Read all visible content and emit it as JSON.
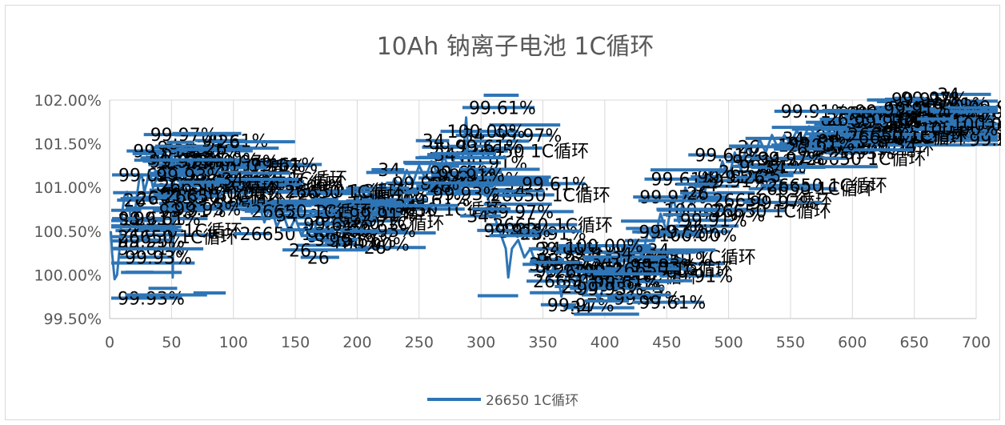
{
  "chart_data": {
    "type": "line",
    "title": "10Ah 钠离子电池 1C循环",
    "xlabel": "",
    "ylabel": "",
    "xlim": [
      0,
      700
    ],
    "ylim": [
      99.5,
      102.0
    ],
    "x_ticks": [
      0,
      50,
      100,
      150,
      200,
      250,
      300,
      350,
      400,
      450,
      500,
      550,
      600,
      650,
      700
    ],
    "x_tick_labels": [
      "0",
      "50",
      "100",
      "150",
      "200",
      "250",
      "300",
      "350",
      "400",
      "450",
      "500",
      "550",
      "600",
      "650",
      "700"
    ],
    "y_ticks": [
      99.5,
      100.0,
      100.5,
      101.0,
      101.5,
      102.0
    ],
    "y_tick_labels": [
      "99.50%",
      "100.00%",
      "100.50%",
      "101.00%",
      "101.50%",
      "102.00%"
    ],
    "grid": "vertical",
    "legend_position": "bottom",
    "series_color": "#2e75b6",
    "series": [
      {
        "name": "26650 1C循环",
        "points": [
          [
            1,
            100.5
          ],
          [
            2,
            100.25
          ],
          [
            4,
            99.95
          ],
          [
            6,
            100.0
          ],
          [
            8,
            100.3
          ],
          [
            10,
            100.7
          ],
          [
            12,
            100.9
          ],
          [
            14,
            100.95
          ],
          [
            16,
            100.75
          ],
          [
            18,
            100.55
          ],
          [
            20,
            100.65
          ],
          [
            22,
            100.9
          ],
          [
            24,
            101.1
          ],
          [
            26,
            101.15
          ],
          [
            28,
            100.95
          ],
          [
            30,
            101.05
          ],
          [
            32,
            101.2
          ],
          [
            35,
            101.0
          ],
          [
            38,
            101.1
          ],
          [
            42,
            101.2
          ],
          [
            45,
            101.35
          ],
          [
            48,
            101.2
          ],
          [
            50,
            101.5
          ],
          [
            51,
            99.97
          ],
          [
            52,
            101.3
          ],
          [
            55,
            101.5
          ],
          [
            60,
            101.4
          ],
          [
            65,
            101.2
          ],
          [
            70,
            101.3
          ],
          [
            75,
            101.1
          ],
          [
            80,
            101.3
          ],
          [
            85,
            101.15
          ],
          [
            90,
            101.25
          ],
          [
            95,
            100.95
          ],
          [
            100,
            101.1
          ],
          [
            105,
            100.85
          ],
          [
            110,
            100.95
          ],
          [
            115,
            100.7
          ],
          [
            120,
            100.85
          ],
          [
            125,
            100.6
          ],
          [
            130,
            100.8
          ],
          [
            135,
            100.55
          ],
          [
            140,
            100.7
          ],
          [
            145,
            100.5
          ],
          [
            150,
            100.65
          ],
          [
            155,
            100.45
          ],
          [
            160,
            100.6
          ],
          [
            165,
            100.5
          ],
          [
            170,
            100.7
          ],
          [
            175,
            100.55
          ],
          [
            180,
            100.75
          ],
          [
            185,
            100.6
          ],
          [
            190,
            100.8
          ],
          [
            195,
            100.7
          ],
          [
            200,
            100.9
          ],
          [
            205,
            100.75
          ],
          [
            210,
            100.95
          ],
          [
            215,
            100.85
          ],
          [
            220,
            101.05
          ],
          [
            225,
            100.9
          ],
          [
            230,
            101.1
          ],
          [
            235,
            101.0
          ],
          [
            240,
            101.2
          ],
          [
            245,
            101.05
          ],
          [
            250,
            101.25
          ],
          [
            255,
            101.1
          ],
          [
            260,
            101.3
          ],
          [
            265,
            101.15
          ],
          [
            270,
            101.35
          ],
          [
            275,
            101.2
          ],
          [
            280,
            101.4
          ],
          [
            285,
            101.3
          ],
          [
            288,
            101.8
          ],
          [
            290,
            101.3
          ],
          [
            295,
            101.1
          ],
          [
            300,
            101.0
          ],
          [
            305,
            100.9
          ],
          [
            310,
            100.7
          ],
          [
            315,
            100.5
          ],
          [
            320,
            100.3
          ],
          [
            322,
            99.97
          ],
          [
            325,
            100.3
          ],
          [
            330,
            100.4
          ],
          [
            335,
            100.2
          ],
          [
            340,
            100.3
          ],
          [
            345,
            100.1
          ],
          [
            350,
            100.25
          ],
          [
            355,
            99.95
          ],
          [
            360,
            100.15
          ],
          [
            365,
            99.75
          ],
          [
            370,
            100.05
          ],
          [
            375,
            99.9
          ],
          [
            380,
            100.0
          ],
          [
            385,
            99.8
          ],
          [
            390,
            99.95
          ],
          [
            395,
            99.7
          ],
          [
            400,
            99.9
          ],
          [
            405,
            100.2
          ],
          [
            410,
            100.0
          ],
          [
            415,
            100.3
          ],
          [
            420,
            100.1
          ],
          [
            425,
            100.4
          ],
          [
            430,
            100.2
          ],
          [
            435,
            100.5
          ],
          [
            440,
            100.4
          ],
          [
            445,
            100.7
          ],
          [
            450,
            100.5
          ],
          [
            455,
            100.9
          ],
          [
            460,
            100.6
          ],
          [
            465,
            101.0
          ],
          [
            470,
            100.8
          ],
          [
            475,
            101.1
          ],
          [
            480,
            100.9
          ],
          [
            485,
            101.2
          ],
          [
            490,
            101.0
          ],
          [
            495,
            101.3
          ],
          [
            500,
            101.1
          ],
          [
            505,
            101.4
          ],
          [
            510,
            101.2
          ],
          [
            515,
            101.5
          ],
          [
            520,
            101.3
          ],
          [
            525,
            101.55
          ],
          [
            530,
            101.4
          ],
          [
            535,
            101.6
          ],
          [
            540,
            101.45
          ],
          [
            545,
            101.6
          ],
          [
            550,
            101.5
          ],
          [
            555,
            101.65
          ],
          [
            560,
            101.55
          ],
          [
            565,
            101.7
          ],
          [
            570,
            101.6
          ],
          [
            575,
            101.7
          ],
          [
            580,
            101.65
          ],
          [
            585,
            101.75
          ],
          [
            590,
            101.7
          ],
          [
            595,
            101.75
          ],
          [
            600,
            101.7
          ],
          [
            605,
            101.8
          ],
          [
            610,
            101.75
          ],
          [
            615,
            101.8
          ],
          [
            620,
            101.75
          ],
          [
            625,
            101.8
          ],
          [
            630,
            101.75
          ],
          [
            635,
            101.8
          ],
          [
            640,
            101.75
          ],
          [
            645,
            101.8
          ],
          [
            650,
            101.75
          ],
          [
            655,
            101.8
          ],
          [
            660,
            101.75
          ],
          [
            665,
            101.8
          ],
          [
            670,
            101.75
          ],
          [
            675,
            101.8
          ],
          [
            680,
            101.75
          ],
          [
            685,
            101.8
          ],
          [
            690,
            101.75
          ],
          [
            695,
            101.8
          ],
          [
            700,
            101.75
          ]
        ]
      }
    ],
    "annotations": [
      "26650 1C循环",
      "100.00%",
      "99.93%",
      "99.97%",
      "99.91%",
      "99.61%",
      "34",
      "26"
    ]
  },
  "legend": {
    "label": "26650 1C循环"
  }
}
